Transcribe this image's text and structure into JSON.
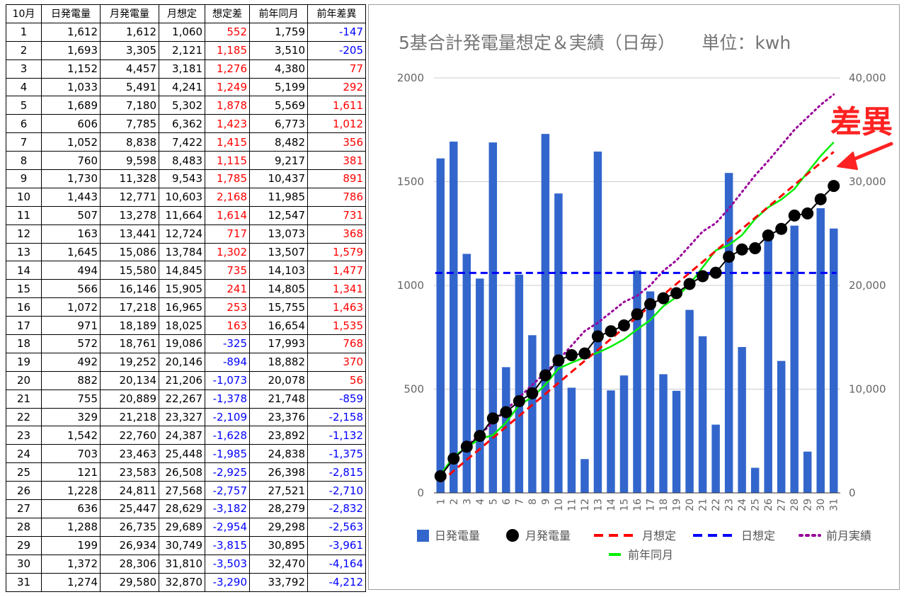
{
  "table": {
    "headers": [
      "10月",
      "日発電量",
      "月発電量",
      "月想定",
      "想定差",
      "前年同月",
      "前年差異"
    ],
    "rows": [
      [
        "1",
        "1,612",
        "1,612",
        "1,060",
        "552",
        "1,759",
        "-147"
      ],
      [
        "2",
        "1,693",
        "3,305",
        "2,121",
        "1,185",
        "3,510",
        "-205"
      ],
      [
        "3",
        "1,152",
        "4,457",
        "3,181",
        "1,276",
        "4,380",
        "77"
      ],
      [
        "4",
        "1,033",
        "5,491",
        "4,241",
        "1,249",
        "5,199",
        "292"
      ],
      [
        "5",
        "1,689",
        "7,180",
        "5,302",
        "1,878",
        "5,569",
        "1,611"
      ],
      [
        "6",
        "606",
        "7,785",
        "6,362",
        "1,423",
        "6,773",
        "1,012"
      ],
      [
        "7",
        "1,052",
        "8,838",
        "7,422",
        "1,415",
        "8,482",
        "356"
      ],
      [
        "8",
        "760",
        "9,598",
        "8,483",
        "1,115",
        "9,217",
        "381"
      ],
      [
        "9",
        "1,730",
        "11,328",
        "9,543",
        "1,785",
        "10,437",
        "891"
      ],
      [
        "10",
        "1,443",
        "12,771",
        "10,603",
        "2,168",
        "11,985",
        "786"
      ],
      [
        "11",
        "507",
        "13,278",
        "11,664",
        "1,614",
        "12,547",
        "731"
      ],
      [
        "12",
        "163",
        "13,441",
        "12,724",
        "717",
        "13,073",
        "368"
      ],
      [
        "13",
        "1,645",
        "15,086",
        "13,784",
        "1,302",
        "13,507",
        "1,579"
      ],
      [
        "14",
        "494",
        "15,580",
        "14,845",
        "735",
        "14,103",
        "1,477"
      ],
      [
        "15",
        "566",
        "16,146",
        "15,905",
        "241",
        "14,805",
        "1,341"
      ],
      [
        "16",
        "1,072",
        "17,218",
        "16,965",
        "253",
        "15,755",
        "1,463"
      ],
      [
        "17",
        "971",
        "18,189",
        "18,025",
        "163",
        "16,654",
        "1,535"
      ],
      [
        "18",
        "572",
        "18,761",
        "19,086",
        "-325",
        "17,993",
        "768"
      ],
      [
        "19",
        "492",
        "19,252",
        "20,146",
        "-894",
        "18,882",
        "370"
      ],
      [
        "20",
        "882",
        "20,134",
        "21,206",
        "-1,073",
        "20,078",
        "56"
      ],
      [
        "21",
        "755",
        "20,889",
        "22,267",
        "-1,378",
        "21,748",
        "-859"
      ],
      [
        "22",
        "329",
        "21,218",
        "23,327",
        "-2,109",
        "23,376",
        "-2,158"
      ],
      [
        "23",
        "1,542",
        "22,760",
        "24,387",
        "-1,628",
        "23,892",
        "-1,132"
      ],
      [
        "24",
        "703",
        "23,463",
        "25,448",
        "-1,985",
        "24,838",
        "-1,375"
      ],
      [
        "25",
        "121",
        "23,583",
        "26,508",
        "-2,925",
        "26,398",
        "-2,815"
      ],
      [
        "26",
        "1,228",
        "24,811",
        "27,568",
        "-2,757",
        "27,521",
        "-2,710"
      ],
      [
        "27",
        "636",
        "25,447",
        "28,629",
        "-3,182",
        "28,279",
        "-2,832"
      ],
      [
        "28",
        "1,288",
        "26,735",
        "29,689",
        "-2,954",
        "29,298",
        "-2,563"
      ],
      [
        "29",
        "199",
        "26,934",
        "30,749",
        "-3,815",
        "30,895",
        "-3,961"
      ],
      [
        "30",
        "1,372",
        "28,306",
        "31,810",
        "-3,503",
        "32,470",
        "-4,164"
      ],
      [
        "31",
        "1,274",
        "29,580",
        "32,870",
        "-3,290",
        "33,792",
        "-4,212"
      ]
    ]
  },
  "colors": {
    "positive": "#ff0000",
    "negative": "#0000ff",
    "bar": "#3366cc",
    "monthly": "#000000",
    "month_target": "#ff0000",
    "daily_target": "#0000ff",
    "prev_month": "#990099",
    "prev_year": "#00ee00",
    "annotation": "#ff2222"
  },
  "chart_data": {
    "type": "bar",
    "title": "5基合計発電量想定＆実績（日毎）　　単位：kwh",
    "annotation": "差異",
    "categories": [
      "1",
      "2",
      "3",
      "4",
      "5",
      "6",
      "7",
      "8",
      "9",
      "10",
      "11",
      "12",
      "13",
      "14",
      "15",
      "16",
      "17",
      "18",
      "19",
      "20",
      "21",
      "22",
      "23",
      "24",
      "25",
      "26",
      "27",
      "28",
      "29",
      "30",
      "31"
    ],
    "left_axis": {
      "min": 0,
      "max": 2000,
      "ticks": [
        "0",
        "500",
        "1000",
        "1500",
        "2000"
      ],
      "tick_values": [
        0,
        500,
        1000,
        1500,
        2000
      ]
    },
    "right_axis": {
      "min": 0,
      "max": 40000,
      "ticks": [
        "0",
        "10,000",
        "20,000",
        "30,000",
        "40,000"
      ],
      "tick_values": [
        0,
        10000,
        20000,
        30000,
        40000
      ]
    },
    "series": [
      {
        "name": "日発電量",
        "kind": "bar",
        "axis": "left",
        "values": [
          1612,
          1693,
          1152,
          1033,
          1689,
          606,
          1052,
          760,
          1730,
          1443,
          507,
          163,
          1645,
          494,
          566,
          1072,
          971,
          572,
          492,
          882,
          755,
          329,
          1542,
          703,
          121,
          1228,
          636,
          1288,
          199,
          1372,
          1274
        ]
      },
      {
        "name": "月発電量",
        "kind": "line-marker",
        "axis": "right",
        "values": [
          1612,
          3305,
          4457,
          5491,
          7180,
          7785,
          8838,
          9598,
          11328,
          12771,
          13278,
          13441,
          15086,
          15580,
          16146,
          17218,
          18189,
          18761,
          19252,
          20134,
          20889,
          21218,
          22760,
          23463,
          23583,
          24811,
          25447,
          26735,
          26934,
          28306,
          29580
        ]
      },
      {
        "name": "月想定",
        "kind": "dashed",
        "axis": "right",
        "values": [
          1060,
          2121,
          3181,
          4241,
          5302,
          6362,
          7422,
          8483,
          9543,
          10603,
          11664,
          12724,
          13784,
          14845,
          15905,
          16965,
          18025,
          19086,
          20146,
          21206,
          22267,
          23327,
          24387,
          25448,
          26508,
          27568,
          28629,
          29689,
          30749,
          31810,
          32870
        ]
      },
      {
        "name": "日想定",
        "kind": "dashed",
        "axis": "left",
        "values": [
          1060,
          1060,
          1060,
          1060,
          1060,
          1060,
          1060,
          1060,
          1060,
          1060,
          1060,
          1060,
          1060,
          1060,
          1060,
          1060,
          1060,
          1060,
          1060,
          1060,
          1060,
          1060,
          1060,
          1060,
          1060,
          1060,
          1060,
          1060,
          1060,
          1060,
          1060
        ]
      },
      {
        "name": "前月実績",
        "kind": "dotted",
        "axis": "right",
        "values": [
          1700,
          3300,
          4500,
          5600,
          6800,
          8000,
          9200,
          10400,
          11600,
          12800,
          14200,
          15600,
          16400,
          17400,
          18400,
          19000,
          20000,
          21400,
          22400,
          23800,
          25200,
          26000,
          27400,
          29000,
          30600,
          32000,
          33500,
          35000,
          36200,
          37400,
          38400
        ]
      },
      {
        "name": "前年同月",
        "kind": "line",
        "axis": "right",
        "values": [
          1759,
          3510,
          4380,
          5199,
          5569,
          6773,
          8482,
          9217,
          10437,
          11985,
          12547,
          13073,
          13507,
          14103,
          14805,
          15755,
          16654,
          17993,
          18882,
          20078,
          21748,
          23376,
          23892,
          24838,
          26398,
          27521,
          28279,
          29298,
          30895,
          32470,
          33792
        ]
      }
    ]
  }
}
